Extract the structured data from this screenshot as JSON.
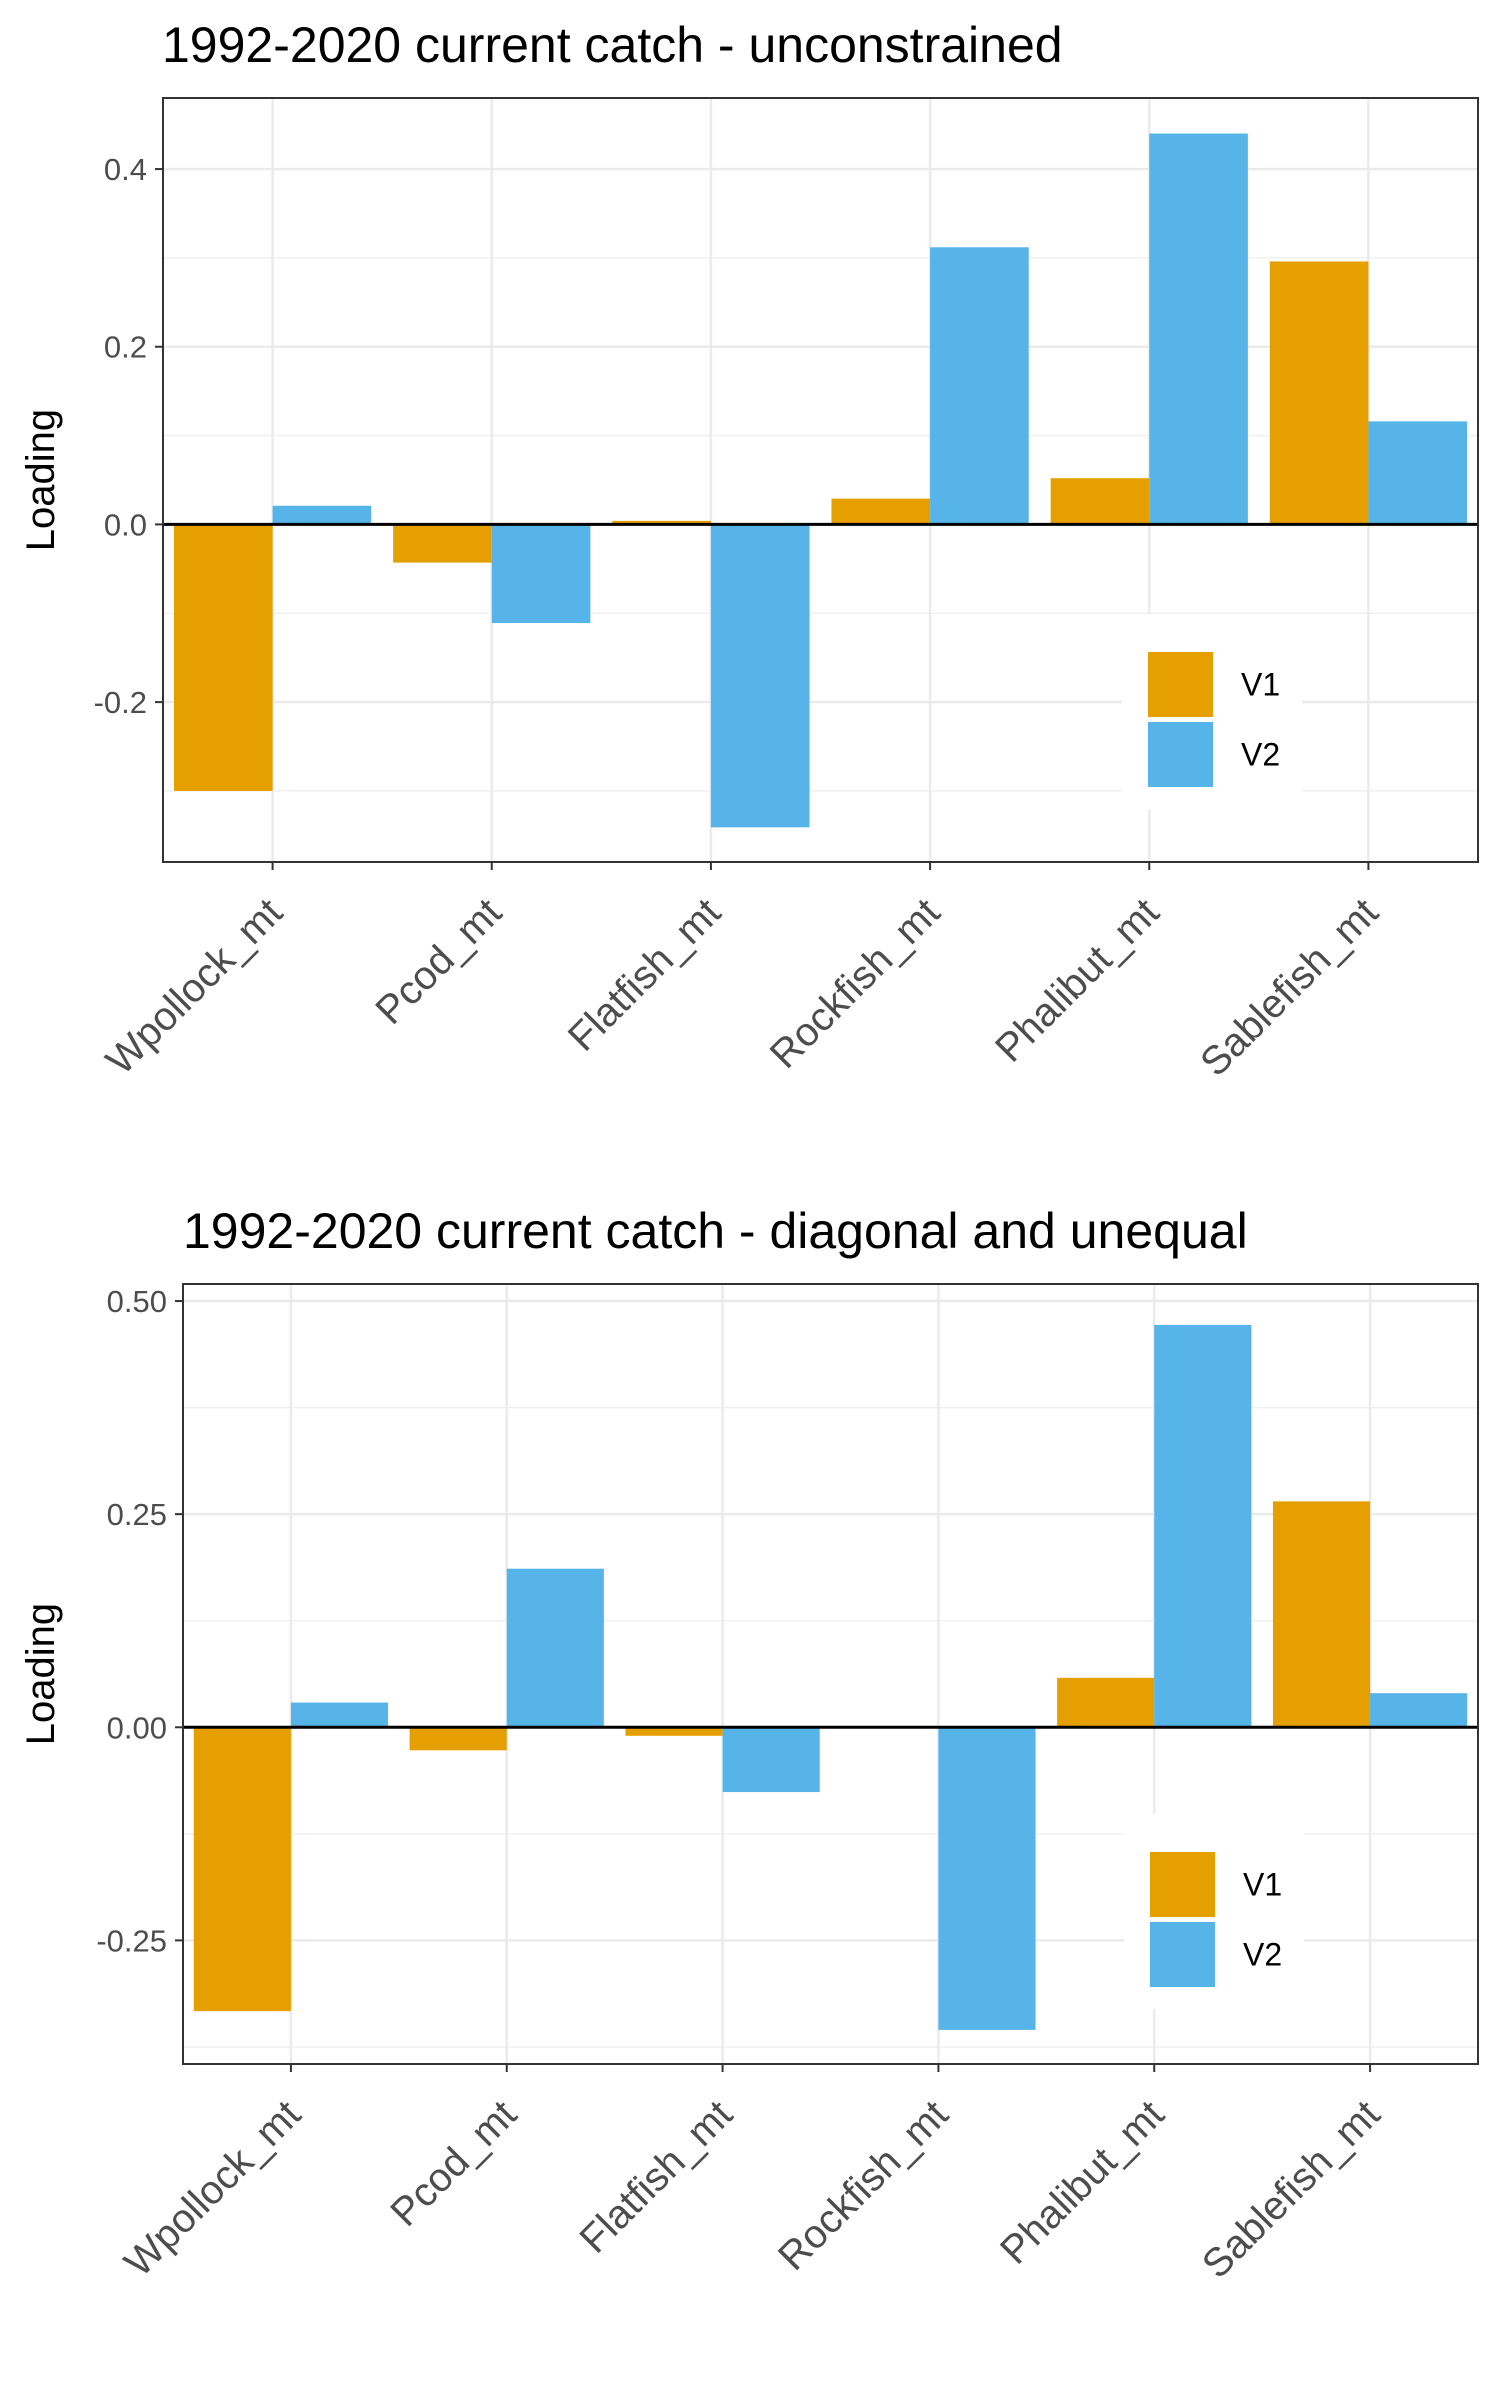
{
  "chart_data": [
    {
      "type": "bar",
      "title": "1992-2020 current catch - unconstrained",
      "xlabel": "",
      "ylabel": "Loading",
      "categories": [
        "Wpollock_mt",
        "Pcod_mt",
        "Flatfish_mt",
        "Rockfish_mt",
        "Phalibut_mt",
        "Sablefish_mt"
      ],
      "series": [
        {
          "name": "V1",
          "color": "#E69F00",
          "values": [
            -0.3,
            -0.043,
            0.004,
            0.029,
            0.052,
            0.296
          ]
        },
        {
          "name": "V2",
          "color": "#56B4E9",
          "values": [
            0.021,
            -0.111,
            -0.341,
            0.312,
            0.44,
            0.116
          ]
        }
      ],
      "ylim": [
        -0.38,
        0.48
      ],
      "yticks": [
        -0.2,
        0.0,
        0.2,
        0.4
      ],
      "ytick_labels": [
        "-0.2",
        "0.0",
        "0.2",
        "0.4"
      ],
      "grid": true,
      "legend_position": "bottom-right"
    },
    {
      "type": "bar",
      "title": "1992-2020 current catch - diagonal and unequal",
      "xlabel": "",
      "ylabel": "Loading",
      "categories": [
        "Wpollock_mt",
        "Pcod_mt",
        "Flatfish_mt",
        "Rockfish_mt",
        "Phalibut_mt",
        "Sablefish_mt"
      ],
      "series": [
        {
          "name": "V1",
          "color": "#E69F00",
          "values": [
            -0.333,
            -0.027,
            -0.01,
            0.0,
            0.058,
            0.265
          ]
        },
        {
          "name": "V2",
          "color": "#56B4E9",
          "values": [
            0.029,
            0.186,
            -0.076,
            -0.355,
            0.472,
            0.04
          ]
        }
      ],
      "ylim": [
        -0.395,
        0.52
      ],
      "yticks": [
        -0.25,
        0.0,
        0.25,
        0.5
      ],
      "ytick_labels": [
        "-0.25",
        "0.00",
        "0.25",
        "0.50"
      ],
      "grid": true,
      "legend_position": "bottom-right"
    }
  ]
}
